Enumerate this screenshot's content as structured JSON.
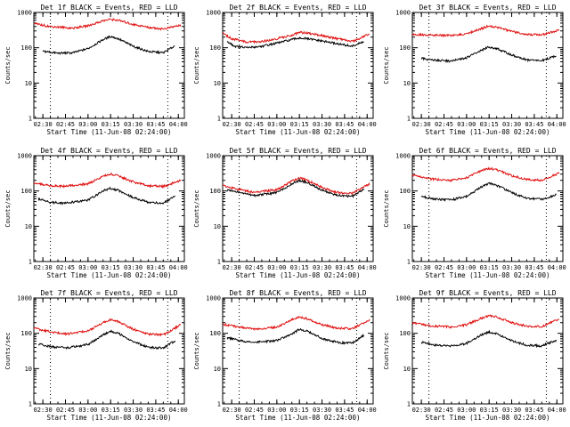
{
  "chart_data": {
    "type": "line",
    "x_tick_labels": [
      "02:30",
      "02:45",
      "03:00",
      "03:15",
      "03:30",
      "03:45",
      "04:00"
    ],
    "x_range": [
      "02:24",
      "04:04"
    ],
    "y_scale": "log",
    "y_range": [
      1,
      1000
    ],
    "y_tick_labels": [
      "1",
      "10",
      "100",
      "1000"
    ],
    "xlabel": "Start Time (11-Jun-08 02:24:00)",
    "ylabel": "Counts/sec",
    "marker_lines": [
      "02:35",
      "03:53"
    ],
    "series_colors": {
      "events": "#000000",
      "lld": "#e01010"
    },
    "panels": [
      {
        "title": "Det 1f BLACK = Events, RED = LLD",
        "series": [
          {
            "key": "events",
            "x": [
              "02:30",
              "02:40",
              "02:50",
              "03:00",
              "03:10",
              "03:15",
              "03:20",
              "03:30",
              "03:40",
              "03:50",
              "03:58"
            ],
            "y": [
              80,
              70,
              72,
              95,
              170,
              210,
              180,
              110,
              78,
              72,
              115
            ]
          },
          {
            "key": "lld",
            "x": [
              "02:24",
              "02:35",
              "02:50",
              "03:00",
              "03:10",
              "03:15",
              "03:20",
              "03:30",
              "03:40",
              "03:50",
              "04:02"
            ],
            "y": [
              480,
              400,
              360,
              420,
              580,
              640,
              600,
              460,
              380,
              340,
              440
            ]
          }
        ]
      },
      {
        "title": "Det 2f BLACK = Events, RED = LLD",
        "series": [
          {
            "key": "events",
            "x": [
              "02:27",
              "02:32",
              "02:40",
              "02:50",
              "03:00",
              "03:10",
              "03:15",
              "03:20",
              "03:30",
              "03:40",
              "03:50",
              "03:58"
            ],
            "y": [
              150,
              110,
              100,
              110,
              135,
              170,
              190,
              180,
              155,
              130,
              110,
              150
            ]
          },
          {
            "key": "lld",
            "x": [
              "02:24",
              "02:30",
              "02:40",
              "02:50",
              "03:00",
              "03:10",
              "03:15",
              "03:20",
              "03:30",
              "03:40",
              "03:50",
              "04:02"
            ],
            "y": [
              260,
              180,
              145,
              150,
              180,
              230,
              270,
              260,
              220,
              180,
              150,
              250
            ]
          }
        ]
      },
      {
        "title": "Det 3f BLACK = Events, RED = LLD",
        "series": [
          {
            "key": "events",
            "x": [
              "02:30",
              "02:40",
              "02:50",
              "03:00",
              "03:10",
              "03:15",
              "03:20",
              "03:30",
              "03:40",
              "03:50",
              "04:00"
            ],
            "y": [
              50,
              44,
              42,
              52,
              85,
              105,
              95,
              62,
              45,
              43,
              60
            ]
          },
          {
            "key": "lld",
            "x": [
              "02:24",
              "02:35",
              "02:50",
              "03:00",
              "03:10",
              "03:15",
              "03:20",
              "03:30",
              "03:40",
              "03:50",
              "04:02"
            ],
            "y": [
              240,
              230,
              220,
              250,
              350,
              420,
              380,
              290,
              240,
              230,
              320
            ]
          }
        ]
      },
      {
        "title": "Det 4f BLACK = Events, RED = LLD",
        "series": [
          {
            "key": "events",
            "x": [
              "02:27",
              "02:35",
              "02:45",
              "03:00",
              "03:10",
              "03:15",
              "03:20",
              "03:30",
              "03:40",
              "03:50",
              "03:58"
            ],
            "y": [
              60,
              48,
              45,
              55,
              100,
              120,
              105,
              65,
              48,
              45,
              70
            ]
          },
          {
            "key": "lld",
            "x": [
              "02:24",
              "02:35",
              "02:45",
              "03:00",
              "03:10",
              "03:15",
              "03:20",
              "03:30",
              "03:40",
              "03:50",
              "04:02"
            ],
            "y": [
              170,
              140,
              135,
              160,
              260,
              300,
              270,
              180,
              140,
              135,
              200
            ]
          }
        ]
      },
      {
        "title": "Det 5f BLACK = Events, RED = LLD",
        "series": [
          {
            "key": "events",
            "x": [
              "02:27",
              "02:35",
              "02:45",
              "03:00",
              "03:10",
              "03:15",
              "03:20",
              "03:30",
              "03:40",
              "03:50",
              "03:58"
            ],
            "y": [
              110,
              90,
              75,
              90,
              160,
              200,
              175,
              105,
              75,
              70,
              115
            ]
          },
          {
            "key": "lld",
            "x": [
              "02:24",
              "02:35",
              "02:45",
              "03:00",
              "03:10",
              "03:15",
              "03:20",
              "03:30",
              "03:40",
              "03:50",
              "04:02"
            ],
            "y": [
              140,
              110,
              90,
              110,
              190,
              235,
              205,
              125,
              90,
              85,
              160
            ]
          }
        ]
      },
      {
        "title": "Det 6f BLACK = Events, RED = LLD",
        "series": [
          {
            "key": "events",
            "x": [
              "02:30",
              "02:40",
              "02:50",
              "03:00",
              "03:10",
              "03:15",
              "03:20",
              "03:30",
              "03:40",
              "03:50",
              "04:00"
            ],
            "y": [
              70,
              58,
              56,
              70,
              130,
              165,
              145,
              90,
              62,
              58,
              80
            ]
          },
          {
            "key": "lld",
            "x": [
              "02:24",
              "02:35",
              "02:50",
              "03:00",
              "03:10",
              "03:15",
              "03:20",
              "03:30",
              "03:40",
              "03:50",
              "04:02"
            ],
            "y": [
              280,
              220,
              200,
              240,
              380,
              440,
              400,
              270,
              210,
              200,
              330
            ]
          }
        ]
      },
      {
        "title": "Det 7f BLACK = Events, RED = LLD",
        "series": [
          {
            "key": "events",
            "x": [
              "02:27",
              "02:35",
              "02:45",
              "03:00",
              "03:10",
              "03:15",
              "03:20",
              "03:30",
              "03:40",
              "03:50",
              "03:58"
            ],
            "y": [
              50,
              42,
              38,
              48,
              90,
              115,
              100,
              58,
              40,
              38,
              62
            ]
          },
          {
            "key": "lld",
            "x": [
              "02:24",
              "02:35",
              "02:45",
              "03:00",
              "03:10",
              "03:15",
              "03:20",
              "03:30",
              "03:40",
              "03:50",
              "04:02"
            ],
            "y": [
              140,
              110,
              95,
              115,
              200,
              245,
              215,
              130,
              95,
              90,
              180
            ]
          }
        ]
      },
      {
        "title": "Det 8f BLACK = Events, RED = LLD",
        "series": [
          {
            "key": "events",
            "x": [
              "02:27",
              "02:35",
              "02:45",
              "03:00",
              "03:10",
              "03:15",
              "03:20",
              "03:30",
              "03:40",
              "03:50",
              "03:58"
            ],
            "y": [
              75,
              62,
              55,
              62,
              95,
              130,
              115,
              72,
              55,
              52,
              90
            ]
          },
          {
            "key": "lld",
            "x": [
              "02:24",
              "02:35",
              "02:45",
              "03:00",
              "03:10",
              "03:15",
              "03:20",
              "03:30",
              "03:40",
              "03:50",
              "04:02"
            ],
            "y": [
              180,
              150,
              130,
              150,
              240,
              290,
              260,
              175,
              140,
              135,
              240
            ]
          }
        ]
      },
      {
        "title": "Det 9f BLACK = Events, RED = LLD",
        "series": [
          {
            "key": "events",
            "x": [
              "02:30",
              "02:40",
              "02:50",
              "03:00",
              "03:10",
              "03:15",
              "03:20",
              "03:30",
              "03:40",
              "03:50",
              "04:00"
            ],
            "y": [
              55,
              46,
              44,
              52,
              90,
              110,
              98,
              62,
              46,
              44,
              65
            ]
          },
          {
            "key": "lld",
            "x": [
              "02:24",
              "02:35",
              "02:50",
              "03:00",
              "03:10",
              "03:15",
              "03:20",
              "03:30",
              "03:40",
              "03:50",
              "04:02"
            ],
            "y": [
              200,
              165,
              150,
              175,
              270,
              320,
              290,
              200,
              160,
              155,
              260
            ]
          }
        ]
      }
    ]
  }
}
